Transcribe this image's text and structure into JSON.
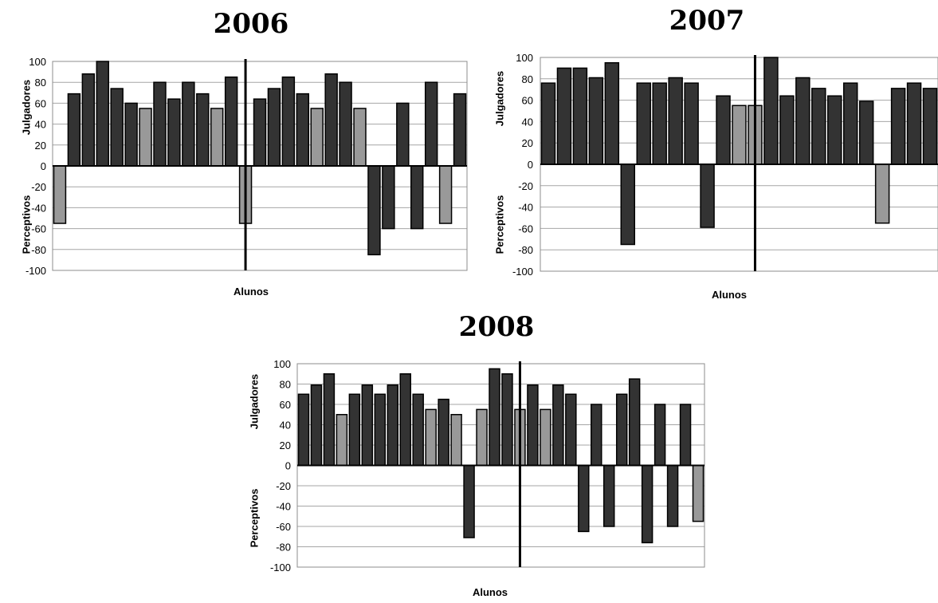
{
  "chart_data": [
    {
      "type": "bar",
      "title": "2006",
      "xlabel": "Alunos",
      "ylabel_top": "Julgadores",
      "ylabel_bottom": "Perceptivos",
      "ylim": [
        -100,
        100
      ],
      "yticks": [
        100,
        80,
        60,
        40,
        20,
        0,
        -20,
        -40,
        -60,
        -80,
        -100
      ],
      "values": [
        -55,
        69,
        88,
        100,
        74,
        60,
        55,
        80,
        64,
        80,
        69,
        55,
        85,
        -55,
        64,
        74,
        85,
        69,
        55,
        88,
        80,
        55,
        -85,
        -60,
        60,
        -60,
        80,
        -55,
        69
      ],
      "highlight": [
        0,
        6,
        11,
        13,
        18,
        21,
        27
      ],
      "divider_after": 13,
      "colors": {
        "dark": "#333333",
        "light": "#999999"
      }
    },
    {
      "type": "bar",
      "title": "2007",
      "xlabel": "Alunos",
      "ylabel_top": "Julgadores",
      "ylabel_bottom": "Perceptivos",
      "ylim": [
        -100,
        100
      ],
      "yticks": [
        100,
        80,
        60,
        40,
        20,
        0,
        -20,
        -40,
        -60,
        -80,
        -100
      ],
      "values": [
        76,
        90,
        90,
        81,
        95,
        -75,
        76,
        76,
        81,
        76,
        -59,
        64,
        55,
        55,
        100,
        64,
        81,
        71,
        64,
        76,
        59,
        -55,
        71,
        76,
        71
      ],
      "highlight": [
        12,
        13,
        21
      ],
      "divider_after": 13,
      "colors": {
        "dark": "#333333",
        "light": "#999999"
      }
    },
    {
      "type": "bar",
      "title": "2008",
      "xlabel": "Alunos",
      "ylabel_top": "Julgadores",
      "ylabel_bottom": "Perceptivos",
      "ylim": [
        -100,
        100
      ],
      "yticks": [
        100,
        80,
        60,
        40,
        20,
        0,
        -20,
        -40,
        -60,
        -80,
        -100
      ],
      "values": [
        70,
        79,
        90,
        50,
        70,
        79,
        70,
        79,
        90,
        70,
        55,
        65,
        50,
        -71,
        55,
        95,
        90,
        55,
        79,
        55,
        79,
        70,
        -65,
        60,
        -60,
        70,
        85,
        -76,
        60,
        -60,
        60,
        -55
      ],
      "highlight": [
        3,
        10,
        12,
        14,
        17,
        19,
        31
      ],
      "divider_after": 17,
      "colors": {
        "dark": "#333333",
        "light": "#999999"
      }
    }
  ]
}
